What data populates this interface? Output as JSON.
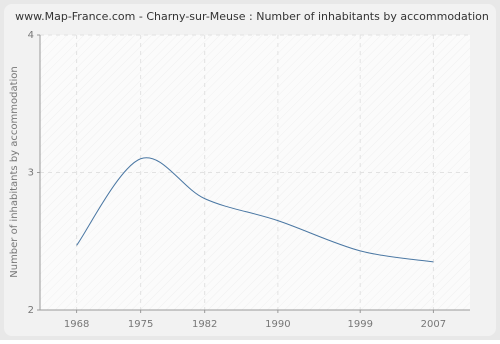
{
  "chart_data": {
    "type": "line",
    "title": "www.Map-France.com - Charny-sur-Meuse : Number of inhabitants by accommodation",
    "y_label": "Number of inhabitants by accommodation",
    "x": [
      1968,
      1975,
      1982,
      1990,
      1999,
      2007
    ],
    "series": [
      {
        "name": "Number of inhabitants by accommodation",
        "color": "#4a77a3",
        "values": [
          2.47,
          3.1,
          2.81,
          2.65,
          2.43,
          2.35
        ]
      }
    ],
    "xlim": [
      1964,
      2011
    ],
    "xticks": [
      1968,
      1975,
      1982,
      1990,
      1999,
      2007
    ],
    "ylim": [
      2,
      4
    ],
    "yticks": [
      2,
      3,
      4
    ],
    "grid": true
  }
}
